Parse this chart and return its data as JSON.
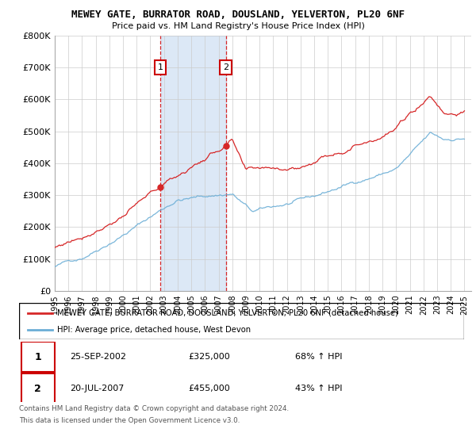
{
  "title1": "MEWEY GATE, BURRATOR ROAD, DOUSLAND, YELVERTON, PL20 6NF",
  "title2": "Price paid vs. HM Land Registry's House Price Index (HPI)",
  "ylabel_ticks": [
    "£0",
    "£100K",
    "£200K",
    "£300K",
    "£400K",
    "£500K",
    "£600K",
    "£700K",
    "£800K"
  ],
  "ylim": [
    0,
    800000
  ],
  "xlim_start": 1995.0,
  "xlim_end": 2025.5,
  "purchase1_date": 2002.73,
  "purchase1_price": 325000,
  "purchase1_label": "1",
  "purchase2_date": 2007.54,
  "purchase2_price": 455000,
  "purchase2_label": "2",
  "legend_line1": "MEWEY GATE, BURRATOR ROAD, DOUSLAND, YELVERTON, PL20 6NF (detached house)",
  "legend_line2": "HPI: Average price, detached house, West Devon",
  "table_row1": [
    "1",
    "25-SEP-2002",
    "£325,000",
    "68% ↑ HPI"
  ],
  "table_row2": [
    "2",
    "20-JUL-2007",
    "£455,000",
    "43% ↑ HPI"
  ],
  "footer1": "Contains HM Land Registry data © Crown copyright and database right 2024.",
  "footer2": "This data is licensed under the Open Government Licence v3.0.",
  "hpi_color": "#6baed6",
  "price_color": "#d62728",
  "shade_color": "#c6d9f0",
  "vline_color": "#d62728",
  "background_color": "#ffffff",
  "grid_color": "#cccccc",
  "label_box_color": "#cc0000",
  "n_points": 360
}
